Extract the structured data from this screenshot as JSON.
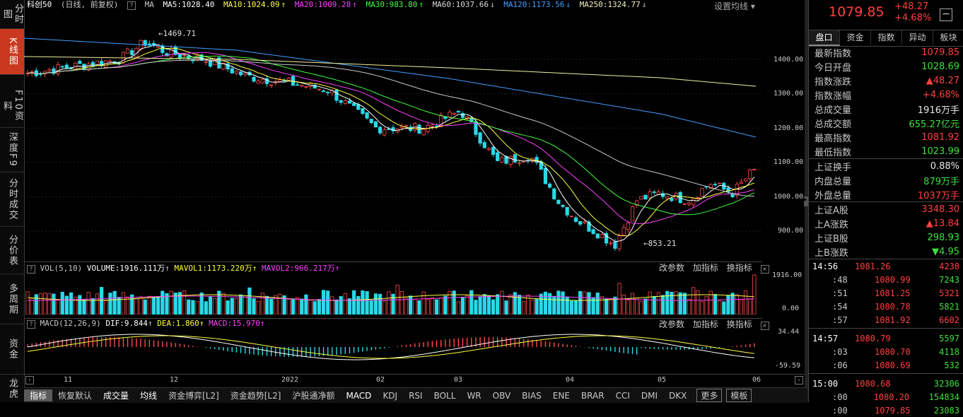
{
  "sidebar": {
    "tabs": [
      {
        "id": "timeshare",
        "label": "分时图"
      },
      {
        "id": "kline",
        "label": "K线图"
      },
      {
        "id": "f10",
        "label": "F10资料"
      },
      {
        "id": "depth",
        "label": "深度F9"
      },
      {
        "id": "ticks",
        "label": "分时成交"
      },
      {
        "id": "price",
        "label": "分价表"
      },
      {
        "id": "multi",
        "label": "多周期"
      },
      {
        "id": "capital",
        "label": "资金"
      },
      {
        "id": "dragon",
        "label": "龙虎"
      }
    ]
  },
  "header": {
    "name": "科创50",
    "mode": "(日线, 前复权)",
    "ma_label": "MA",
    "ma5": "MA5:1028.40",
    "ma10": "MA10:1024.09",
    "ma20": "MA20:1009.28",
    "ma30": "MA30:983.80",
    "ma60": "MA60:1037.66",
    "ma120": "MA120:1173.56",
    "ma250": "MA250:1324.77",
    "settings": "设置均线",
    "colors": {
      "ma5": "#ffffff",
      "ma10": "#ffff00",
      "ma20": "#ff40ff",
      "ma30": "#40ff40",
      "ma60": "#c8c8c8",
      "ma120": "#40a0ff",
      "ma250": "#f0f0a0"
    }
  },
  "main_chart": {
    "y_ticks": [
      "1400.00",
      "1300.00",
      "1200.00",
      "1100.00",
      "1000.00",
      "900.00"
    ],
    "high_label": "1469.71",
    "low_label": "853.21"
  },
  "volume_panel": {
    "params": "VOL(5,10)",
    "volume": "VOLUME:1916.111万",
    "mavol1": "MAVOL1:1173.220万",
    "mavol2": "MAVOL2:966.217万",
    "y_top": "1916.00",
    "y_bottom": "0.00",
    "tools": [
      "改参数",
      "加指标",
      "换指标"
    ]
  },
  "macd_panel": {
    "params": "MACD(12,26,9)",
    "dif": "DIF:9.844",
    "dea": "DEA:1.860",
    "macd": "MACD:15.970",
    "y_top": "34.44",
    "y_bottom": "-59.59",
    "tools": [
      "改参数",
      "加指标",
      "换指标"
    ]
  },
  "x_axis": [
    "11",
    "12",
    "2022",
    "02",
    "03",
    "04",
    "05",
    "06"
  ],
  "bottom_tabs": [
    {
      "label": "指标",
      "style": "sel"
    },
    {
      "label": "恢复默认",
      "style": ""
    },
    {
      "label": "成交量",
      "style": "hl"
    },
    {
      "label": "均线",
      "style": "hl"
    },
    {
      "label": "资金博弈[L2]",
      "style": ""
    },
    {
      "label": "资金趋势[L2]",
      "style": ""
    },
    {
      "label": "沪股通净额",
      "style": ""
    },
    {
      "label": "MACD",
      "style": "hl"
    },
    {
      "label": "KDJ",
      "style": ""
    },
    {
      "label": "RSI",
      "style": ""
    },
    {
      "label": "BOLL",
      "style": ""
    },
    {
      "label": "WR",
      "style": ""
    },
    {
      "label": "OBV",
      "style": ""
    },
    {
      "label": "BIAS",
      "style": ""
    },
    {
      "label": "ENE",
      "style": ""
    },
    {
      "label": "BRAR",
      "style": ""
    },
    {
      "label": "CCI",
      "style": ""
    },
    {
      "label": "DMI",
      "style": ""
    },
    {
      "label": "DKX",
      "style": ""
    },
    {
      "label": "更多",
      "style": "box"
    },
    {
      "label": "模板",
      "style": "box"
    }
  ],
  "quote": {
    "price": "1079.85",
    "change": "+48.27",
    "change_pct": "+4.68%",
    "tabs": [
      "盘口",
      "资金",
      "指数",
      "异动",
      "板块"
    ],
    "rows": [
      {
        "label": "最新指数",
        "value": "1079.85",
        "color": "red"
      },
      {
        "label": "今日开盘",
        "value": "1028.69",
        "color": "green"
      },
      {
        "label": "指数涨跌",
        "value": "▲48.27",
        "color": "red"
      },
      {
        "label": "指数涨幅",
        "value": "+4.68%",
        "color": "red"
      },
      {
        "label": "总成交量",
        "value": "1916万手",
        "color": "white"
      },
      {
        "label": "总成交额",
        "value": "655.27亿元",
        "color": "green"
      },
      {
        "label": "最高指数",
        "value": "1081.92",
        "color": "red"
      },
      {
        "label": "最低指数",
        "value": "1023.99",
        "color": "green"
      }
    ],
    "rows2": [
      {
        "label": "上证换手",
        "value": "0.88%",
        "color": "white"
      },
      {
        "label": "内盘总量",
        "value": "879万手",
        "color": "green"
      },
      {
        "label": "外盘总量",
        "value": "1037万手",
        "color": "red"
      }
    ],
    "rows3": [
      {
        "label": "上证A股",
        "value": "3348.30",
        "color": "red"
      },
      {
        "label": "上A涨跌",
        "value": "▲13.84",
        "color": "red"
      },
      {
        "label": "上证B股",
        "value": "298.93",
        "color": "green"
      },
      {
        "label": "上B涨跌",
        "value": "▼4.95",
        "color": "green"
      }
    ],
    "ticks": [
      {
        "time": "14:56",
        "price": "1081.26",
        "vol": "4238",
        "vcolor": "red"
      },
      {
        "time": ":48",
        "price": "1080.99",
        "vol": "7243",
        "vcolor": "green"
      },
      {
        "time": ":51",
        "price": "1081.25",
        "vol": "5321",
        "vcolor": "red"
      },
      {
        "time": ":54",
        "price": "1080.78",
        "vol": "5821",
        "vcolor": "green"
      },
      {
        "time": ":57",
        "price": "1081.92",
        "vol": "6602",
        "vcolor": "red"
      },
      {
        "time": "14:57",
        "price": "1080.79",
        "vol": "5597",
        "vcolor": "green"
      },
      {
        "time": ":03",
        "price": "1080.70",
        "vol": "4118",
        "vcolor": "green"
      },
      {
        "time": ":06",
        "price": "1080.69",
        "vol": "532",
        "vcolor": "green"
      },
      {
        "time": "15:00",
        "price": "1080.68",
        "vol": "32306",
        "vcolor": "green"
      },
      {
        "time": ":00",
        "price": "1080.20",
        "vol": "154834",
        "vcolor": "green"
      },
      {
        "time": ":00",
        "price": "1079.85",
        "vol": "23083",
        "vcolor": "green"
      }
    ]
  }
}
